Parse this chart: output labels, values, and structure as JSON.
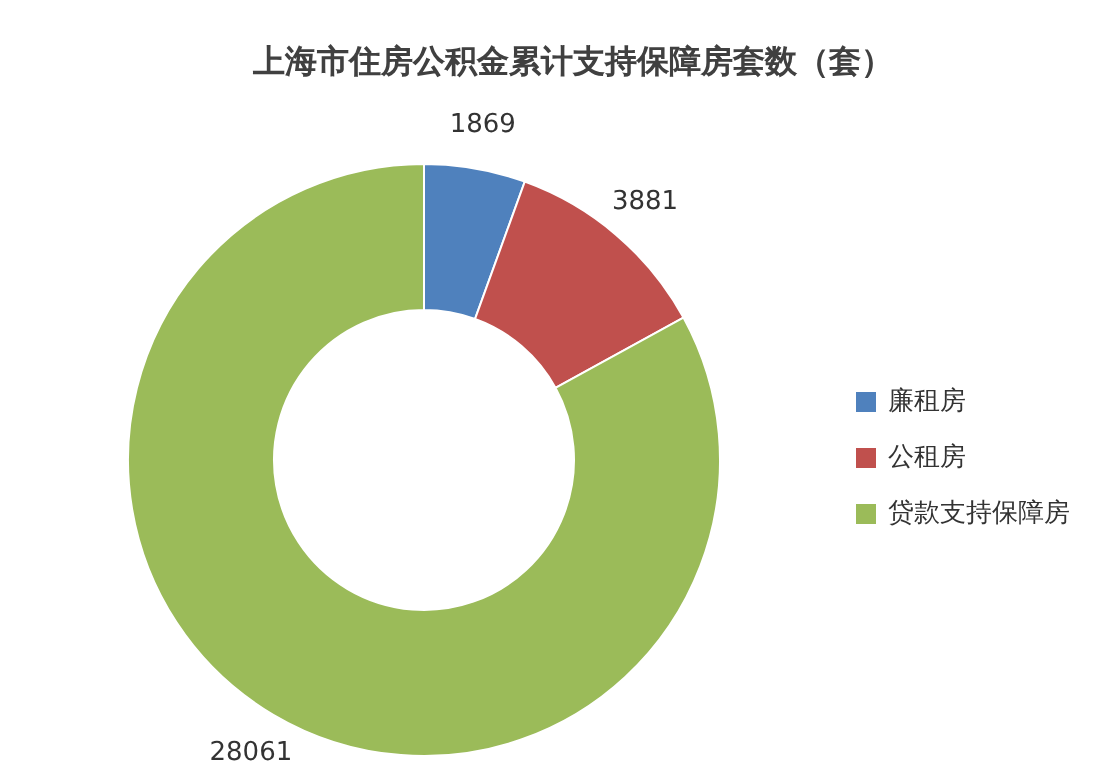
{
  "chart_data": {
    "type": "donut",
    "title": "上海市住房公积金累计支持保障房套数（套）",
    "categories": [
      "廉租房",
      "公租房",
      "贷款支持保障房"
    ],
    "values": [
      1869,
      3881,
      28061
    ],
    "colors": [
      "#4f81bd",
      "#c0504d",
      "#9bbb59"
    ],
    "data_labels": true,
    "legend": "right"
  }
}
